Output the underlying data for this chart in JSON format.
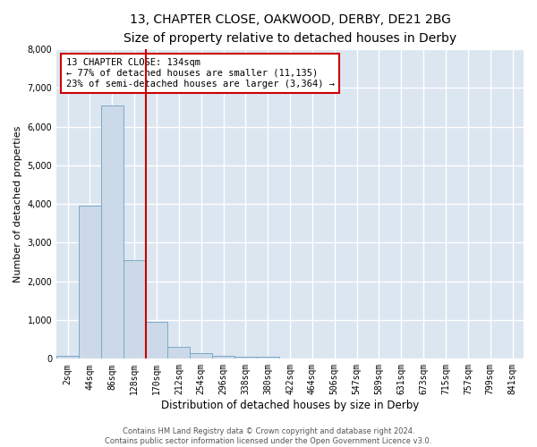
{
  "title": "13, CHAPTER CLOSE, OAKWOOD, DERBY, DE21 2BG",
  "subtitle": "Size of property relative to detached houses in Derby",
  "xlabel": "Distribution of detached houses by size in Derby",
  "ylabel": "Number of detached properties",
  "bar_color": "#ccd9e8",
  "bar_edge_color": "#7aaac8",
  "categories": [
    "2sqm",
    "44sqm",
    "86sqm",
    "128sqm",
    "170sqm",
    "212sqm",
    "254sqm",
    "296sqm",
    "338sqm",
    "380sqm",
    "422sqm",
    "464sqm",
    "506sqm",
    "547sqm",
    "589sqm",
    "631sqm",
    "673sqm",
    "715sqm",
    "757sqm",
    "799sqm",
    "841sqm"
  ],
  "values": [
    75,
    3950,
    6550,
    2550,
    950,
    310,
    140,
    75,
    60,
    50,
    0,
    0,
    0,
    0,
    0,
    0,
    0,
    0,
    0,
    0,
    0
  ],
  "vline_x": 3.5,
  "vline_color": "#cc0000",
  "annotation_text": "13 CHAPTER CLOSE: 134sqm\n← 77% of detached houses are smaller (11,135)\n23% of semi-detached houses are larger (3,364) →",
  "annotation_box_color": "white",
  "annotation_box_edge": "#cc0000",
  "ylim": [
    0,
    8000
  ],
  "yticks": [
    0,
    1000,
    2000,
    3000,
    4000,
    5000,
    6000,
    7000,
    8000
  ],
  "background_color": "#dce6f0",
  "grid_color": "#c8d4e0",
  "footer": "Contains HM Land Registry data © Crown copyright and database right 2024.\nContains public sector information licensed under the Open Government Licence v3.0.",
  "title_fontsize": 10,
  "subtitle_fontsize": 9,
  "xlabel_fontsize": 8.5,
  "ylabel_fontsize": 8,
  "tick_fontsize": 7,
  "annotation_fontsize": 7.5,
  "footer_fontsize": 6
}
